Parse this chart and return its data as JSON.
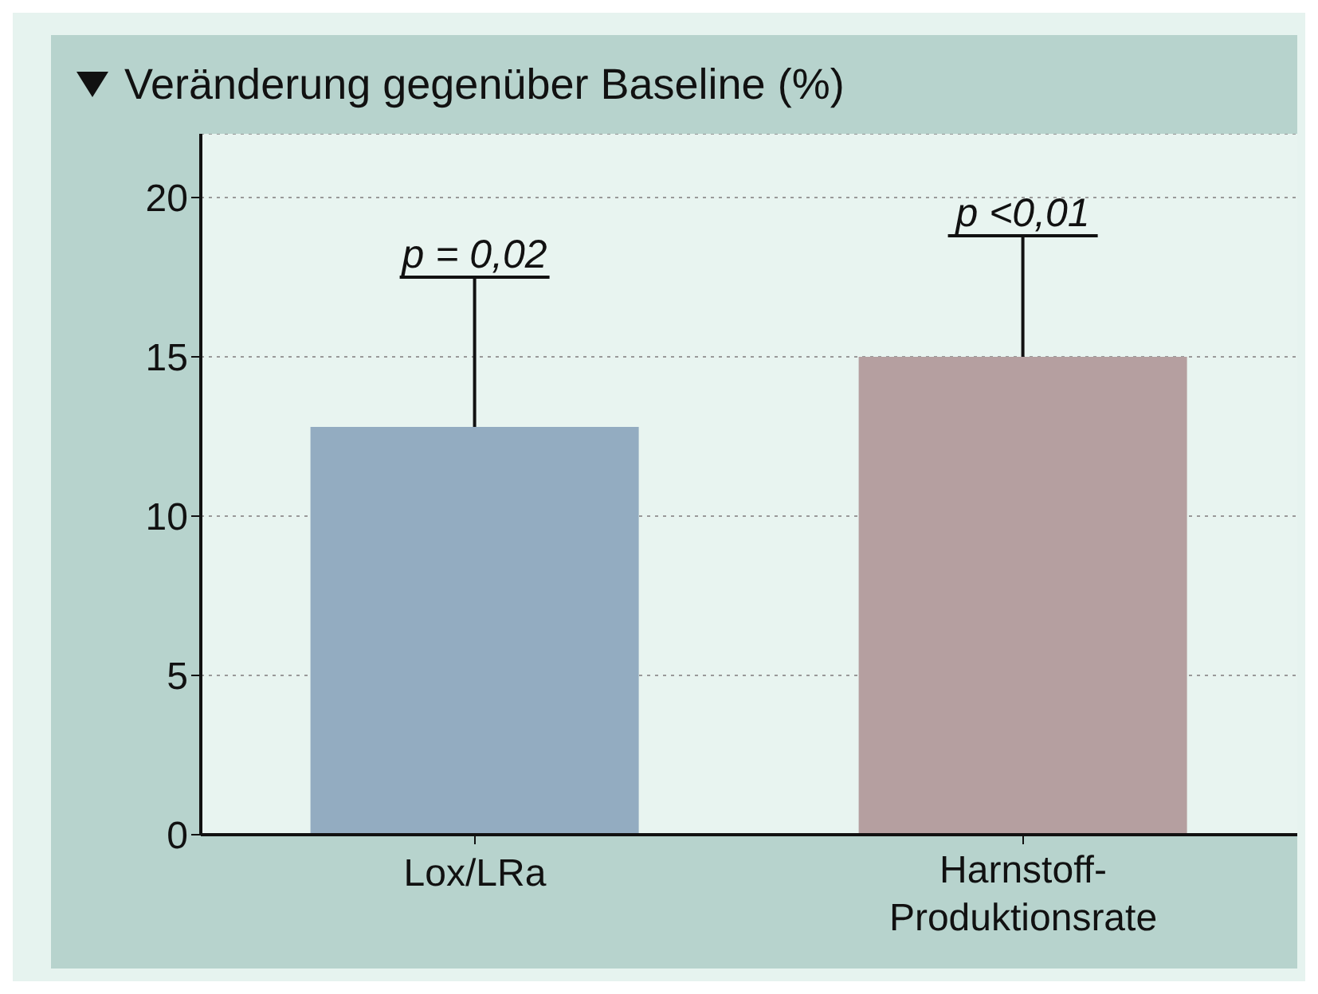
{
  "chart_data": {
    "type": "bar",
    "title": "Veränderung gegenüber Baseline (%)",
    "categories": [
      "Lox/LRa",
      "Harnstoff-Produktionsrate"
    ],
    "values": [
      12.8,
      15
    ],
    "colors": [
      "#93acc1",
      "#b59fa0"
    ],
    "errors": [
      [
        12.8,
        17.5
      ],
      [
        15,
        18.8
      ]
    ],
    "annotations": [
      {
        "text": "p = 0,02",
        "x": "Lox/LRa",
        "y": 17.5
      },
      {
        "text": "p <0,01",
        "x": "Harnstoff-Produktionsrate",
        "y": 18.8
      }
    ],
    "ylim": [
      0,
      22
    ],
    "yticks": [
      0,
      5,
      10,
      15,
      20
    ],
    "grid": "y"
  }
}
